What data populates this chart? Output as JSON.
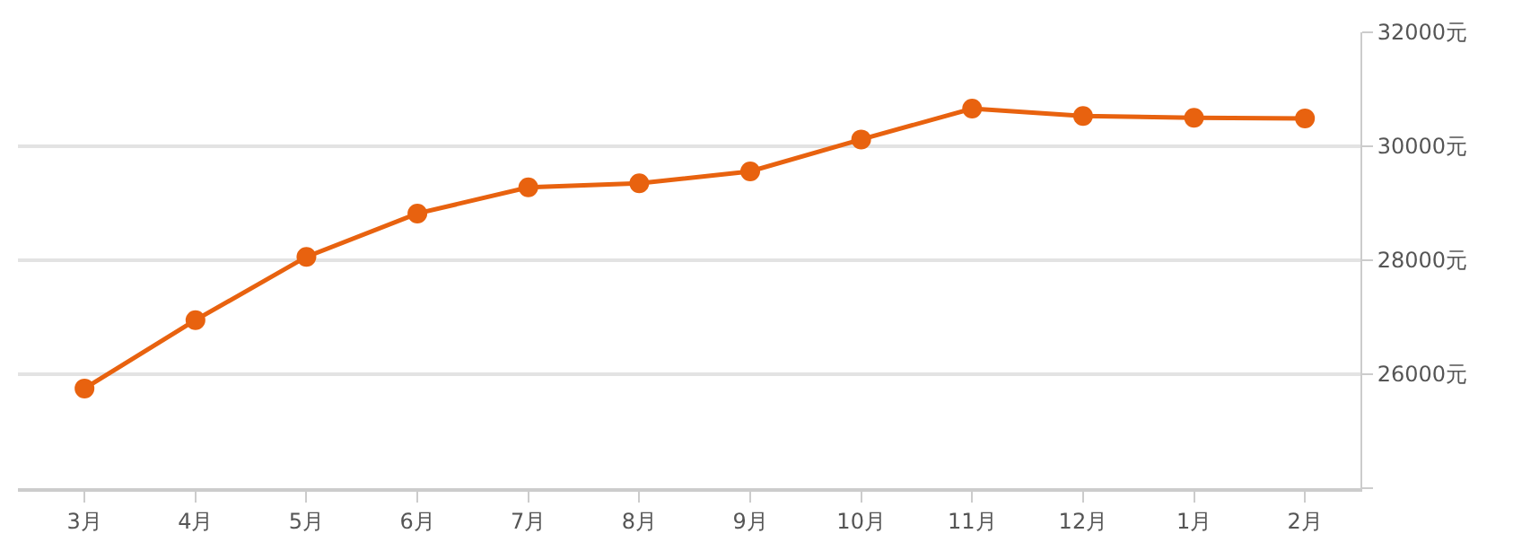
{
  "chart_data": {
    "type": "line",
    "categories": [
      "3月",
      "4月",
      "5月",
      "6月",
      "7月",
      "8月",
      "9月",
      "10月",
      "11月",
      "12月",
      "1月",
      "2月"
    ],
    "series": [
      {
        "color": "#e8620f",
        "values": [
          25750,
          26950,
          28060,
          28820,
          29280,
          29350,
          29560,
          30120,
          30660,
          30530,
          30500,
          30490
        ]
      }
    ],
    "ylim": [
      24000,
      32000
    ],
    "yticks": [
      {
        "value": 24000,
        "label": null
      },
      {
        "value": 26000,
        "label": "26000元"
      },
      {
        "value": 28000,
        "label": "28000元"
      },
      {
        "value": 30000,
        "label": "30000元"
      },
      {
        "value": 32000,
        "label": "32000元"
      }
    ],
    "grid": "y",
    "marker": "circle",
    "line_style": "solid",
    "legend": false
  }
}
